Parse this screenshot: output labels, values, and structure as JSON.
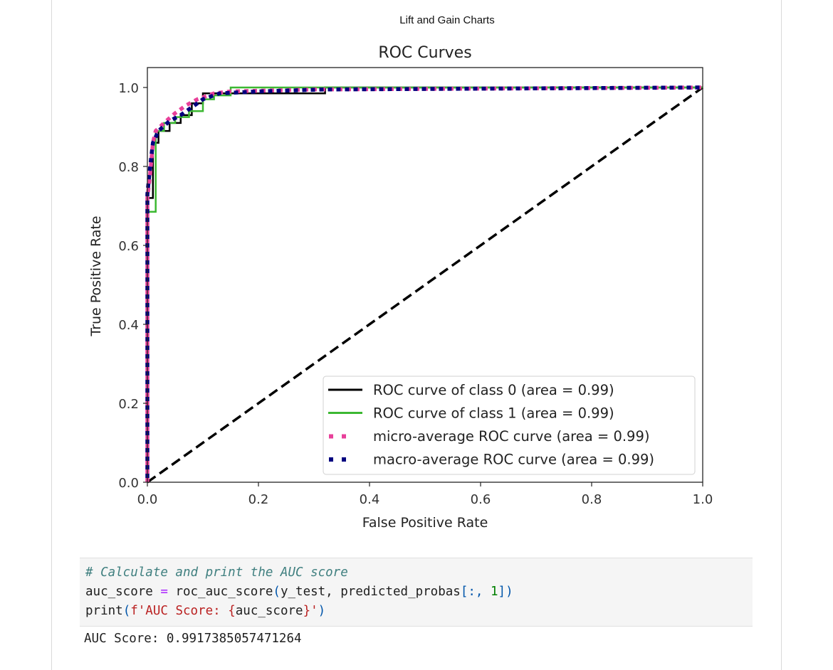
{
  "figure_caption": "Lift and Gain Charts",
  "chart_data": {
    "type": "line",
    "title": "ROC Curves",
    "xlabel": "False Positive Rate",
    "ylabel": "True Positive Rate",
    "xlim": [
      0.0,
      1.0
    ],
    "ylim": [
      0.0,
      1.0
    ],
    "xticks": [
      "0.0",
      "0.2",
      "0.4",
      "0.6",
      "0.8",
      "1.0"
    ],
    "yticks": [
      "0.0",
      "0.2",
      "0.4",
      "0.6",
      "0.8",
      "1.0"
    ],
    "grid": false,
    "legend_position": "lower right",
    "series": [
      {
        "name": "ROC curve of class 0 (area = 0.99)",
        "color": "#000000",
        "style": "solid",
        "x": [
          0.0,
          0.0,
          0.01,
          0.01,
          0.02,
          0.02,
          0.04,
          0.04,
          0.06,
          0.06,
          0.08,
          0.08,
          0.1,
          0.1,
          0.32,
          0.32,
          1.0
        ],
        "y": [
          0.0,
          0.72,
          0.72,
          0.86,
          0.86,
          0.89,
          0.89,
          0.91,
          0.91,
          0.93,
          0.93,
          0.96,
          0.96,
          0.985,
          0.985,
          1.0,
          1.0
        ]
      },
      {
        "name": "ROC curve of class 1 (area = 0.99)",
        "color": "#3cb832",
        "style": "solid",
        "x": [
          0.0,
          0.0,
          0.015,
          0.015,
          0.03,
          0.03,
          0.05,
          0.05,
          0.075,
          0.075,
          0.1,
          0.1,
          0.12,
          0.12,
          0.15,
          0.15,
          1.0
        ],
        "y": [
          0.0,
          0.685,
          0.685,
          0.89,
          0.89,
          0.91,
          0.91,
          0.925,
          0.925,
          0.94,
          0.94,
          0.97,
          0.97,
          0.98,
          0.98,
          1.0,
          1.0
        ]
      },
      {
        "name": "micro-average ROC curve (area = 0.99)",
        "color": "#e8409a",
        "style": "dotted",
        "x": [
          0.0,
          0.0,
          0.005,
          0.01,
          0.015,
          0.03,
          0.05,
          0.07,
          0.09,
          0.12,
          0.15,
          0.3,
          1.0
        ],
        "y": [
          0.0,
          0.72,
          0.78,
          0.86,
          0.89,
          0.91,
          0.935,
          0.955,
          0.97,
          0.985,
          0.99,
          0.995,
          1.0
        ]
      },
      {
        "name": "macro-average ROC curve (area = 0.99)",
        "color": "#00007f",
        "style": "dotted",
        "x": [
          0.0,
          0.0,
          0.005,
          0.01,
          0.02,
          0.04,
          0.06,
          0.08,
          0.1,
          0.13,
          0.2,
          0.32,
          1.0
        ],
        "y": [
          0.0,
          0.73,
          0.8,
          0.86,
          0.89,
          0.915,
          0.93,
          0.95,
          0.97,
          0.985,
          0.99,
          0.995,
          1.0
        ]
      },
      {
        "name": "chance",
        "color": "#000000",
        "style": "dashed",
        "x": [
          0.0,
          1.0
        ],
        "y": [
          0.0,
          1.0
        ]
      }
    ]
  },
  "code_cell": {
    "comment": "# Calculate and print the AUC score",
    "line2": {
      "var": "auc_score ",
      "op": "=",
      "call": " roc_auc_score",
      "open": "(",
      "args": "y_test, predicted_probas",
      "bracket_open": "[:, ",
      "num": "1",
      "bracket_close": "]",
      "close": ")"
    },
    "line3": {
      "func": "print",
      "open": "(",
      "fstr_prefix": "f'AUC Score: ",
      "brace_open": "{",
      "expr": "auc_score",
      "brace_close": "}",
      "fstr_end": "'",
      "close": ")"
    }
  },
  "output": {
    "text": "AUC Score: 0.9917385057471264"
  }
}
